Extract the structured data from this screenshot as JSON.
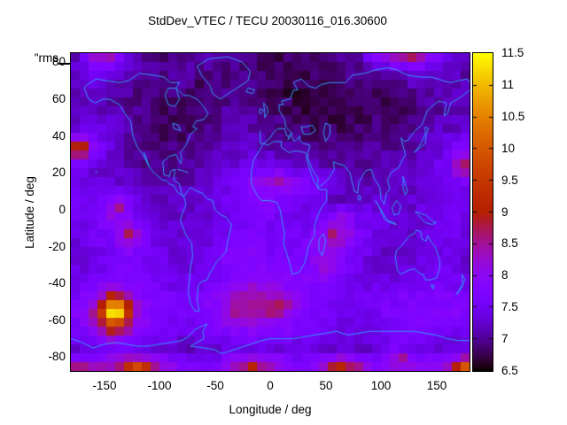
{
  "window_bg": "#ffffff",
  "text_color": "#000000",
  "chart_data": {
    "type": "heatmap",
    "title": "StdDev_VTEC / TECU 20030116_016.30600",
    "key_label": "\"rms",
    "xlabel": "Longitude / deg",
    "ylabel": "Latitude / deg",
    "units": "TECU",
    "xlim": [
      -180,
      180
    ],
    "ylim": [
      -87.5,
      85
    ],
    "xticks": [
      -150,
      -100,
      -50,
      0,
      50,
      100,
      150
    ],
    "yticks": [
      80,
      60,
      40,
      20,
      0,
      -20,
      -40,
      -60,
      -80
    ],
    "colorbar": {
      "range": [
        6.5,
        11.5
      ],
      "ticks": [
        6.5,
        7,
        7.5,
        8,
        8.5,
        9,
        9.5,
        10,
        10.5,
        11,
        11.5
      ],
      "palette": "pm3d black-violet-red-yellow (gnuplot rgbformulae 7,5,15)"
    },
    "grid_lons": [
      -176,
      -160,
      -144,
      -128,
      -112,
      -96,
      -80,
      -64,
      -48,
      -32,
      -16,
      0,
      16,
      32,
      48,
      64,
      80,
      96,
      112,
      128,
      144,
      160,
      176
    ],
    "grid_lats": [
      85,
      75,
      65,
      55,
      45,
      35,
      25,
      15,
      5,
      -5,
      -15,
      -25,
      -35,
      -45,
      -55,
      -65,
      -75,
      -85
    ],
    "base_values": [
      [
        7.2,
        8.3,
        8.5,
        7.4,
        7.0,
        6.9,
        6.9,
        7.0,
        7.1,
        7.0,
        6.9,
        6.8,
        6.8,
        6.9,
        6.9,
        7.0,
        7.1,
        8.2,
        8.8,
        8.9,
        8.2,
        7.4,
        7.2
      ],
      [
        7.3,
        7.5,
        7.4,
        7.1,
        7.0,
        7.0,
        7.1,
        7.0,
        7.0,
        6.9,
        6.9,
        6.8,
        6.8,
        6.8,
        6.9,
        6.9,
        7.0,
        7.0,
        7.2,
        7.4,
        7.3,
        7.2,
        7.1
      ],
      [
        7.2,
        7.3,
        7.2,
        7.0,
        6.9,
        6.9,
        6.9,
        6.8,
        6.9,
        7.0,
        6.9,
        6.8,
        6.7,
        6.7,
        6.7,
        6.8,
        6.8,
        6.8,
        6.9,
        7.0,
        7.1,
        7.2,
        7.1
      ],
      [
        7.1,
        7.2,
        7.1,
        7.0,
        6.9,
        6.8,
        6.8,
        6.8,
        6.9,
        7.1,
        7.0,
        6.9,
        6.8,
        6.7,
        6.7,
        6.7,
        6.8,
        6.8,
        6.8,
        6.9,
        7.0,
        7.1,
        7.1
      ],
      [
        7.3,
        7.4,
        7.3,
        7.1,
        6.9,
        6.8,
        6.8,
        6.9,
        7.0,
        7.2,
        7.1,
        7.0,
        6.9,
        6.8,
        6.8,
        6.8,
        6.8,
        6.9,
        6.9,
        7.0,
        7.1,
        7.2,
        7.3
      ],
      [
        8.0,
        7.8,
        7.3,
        7.1,
        7.0,
        6.9,
        6.9,
        7.0,
        7.1,
        7.2,
        7.2,
        7.1,
        7.0,
        7.0,
        6.9,
        6.9,
        6.9,
        7.0,
        7.0,
        7.1,
        7.2,
        7.4,
        7.8
      ],
      [
        7.6,
        7.4,
        7.2,
        7.1,
        7.0,
        7.0,
        7.0,
        7.1,
        7.2,
        7.3,
        7.4,
        7.4,
        7.3,
        7.2,
        7.1,
        7.0,
        7.0,
        7.1,
        7.1,
        7.2,
        7.3,
        7.6,
        8.2
      ],
      [
        7.4,
        7.3,
        7.3,
        7.2,
        7.1,
        7.1,
        7.1,
        7.2,
        7.4,
        7.6,
        7.9,
        8.1,
        8.0,
        7.8,
        7.5,
        7.2,
        7.1,
        7.1,
        7.2,
        7.2,
        7.3,
        7.4,
        7.5
      ],
      [
        7.6,
        7.5,
        7.9,
        7.6,
        7.3,
        7.2,
        7.2,
        7.3,
        7.4,
        7.6,
        7.8,
        7.8,
        7.6,
        7.4,
        7.3,
        7.2,
        7.2,
        7.3,
        7.3,
        7.3,
        7.4,
        7.5,
        7.6
      ],
      [
        7.5,
        7.5,
        8.0,
        7.8,
        7.4,
        7.3,
        7.2,
        7.3,
        7.4,
        7.5,
        7.6,
        7.6,
        7.5,
        7.5,
        7.6,
        8.2,
        7.6,
        7.4,
        7.3,
        7.3,
        7.4,
        7.5,
        7.5
      ],
      [
        7.4,
        7.5,
        7.7,
        8.4,
        7.6,
        7.4,
        7.3,
        7.3,
        7.4,
        7.6,
        7.7,
        7.6,
        7.5,
        7.6,
        8.0,
        8.3,
        7.7,
        7.4,
        7.3,
        7.3,
        7.4,
        7.4,
        7.4
      ],
      [
        7.3,
        7.4,
        7.5,
        7.7,
        7.5,
        7.4,
        7.3,
        7.4,
        7.6,
        8.0,
        7.9,
        7.7,
        7.6,
        7.7,
        8.2,
        7.9,
        7.5,
        7.3,
        7.2,
        7.3,
        7.4,
        7.4,
        7.3
      ],
      [
        7.4,
        7.5,
        7.6,
        7.7,
        7.6,
        7.5,
        7.4,
        7.4,
        7.6,
        7.8,
        7.8,
        7.7,
        7.7,
        7.8,
        7.9,
        7.6,
        7.4,
        7.3,
        7.3,
        7.4,
        7.5,
        7.5,
        7.4
      ],
      [
        7.6,
        7.8,
        8.2,
        8.0,
        7.7,
        7.6,
        7.5,
        7.6,
        7.8,
        8.2,
        8.4,
        8.2,
        8.0,
        7.8,
        7.6,
        7.5,
        7.5,
        7.5,
        7.6,
        7.7,
        7.7,
        7.7,
        7.6
      ],
      [
        7.8,
        8.4,
        8.8,
        8.5,
        7.9,
        7.7,
        7.6,
        7.7,
        8.0,
        8.6,
        8.6,
        8.4,
        8.0,
        7.8,
        7.6,
        7.5,
        7.5,
        7.6,
        7.7,
        7.8,
        7.8,
        7.8,
        7.8
      ],
      [
        7.6,
        8.0,
        8.8,
        8.3,
        7.8,
        7.6,
        7.5,
        7.5,
        7.7,
        7.9,
        8.0,
        7.9,
        7.8,
        7.6,
        7.5,
        7.4,
        7.4,
        7.5,
        7.6,
        7.7,
        7.7,
        7.7,
        7.6
      ],
      [
        7.3,
        7.4,
        7.6,
        7.6,
        7.4,
        7.3,
        7.2,
        7.2,
        7.3,
        7.4,
        7.4,
        7.4,
        7.3,
        7.3,
        7.2,
        7.2,
        7.2,
        7.3,
        7.6,
        7.4,
        7.3,
        7.3,
        7.3
      ],
      [
        8.4,
        8.2,
        8.4,
        9.0,
        8.8,
        8.2,
        7.8,
        7.6,
        7.8,
        8.4,
        8.8,
        8.3,
        7.9,
        7.8,
        8.2,
        8.9,
        8.4,
        7.9,
        8.0,
        8.2,
        7.9,
        8.3,
        9.2
      ]
    ],
    "hotspots": [
      [
        -140,
        -55,
        2.9,
        11,
        7
      ],
      [
        -172,
        33,
        1.5,
        8,
        6
      ],
      [
        -136,
        2,
        0.9,
        6,
        4
      ],
      [
        -124,
        -14,
        0.5,
        6,
        4
      ],
      [
        8,
        -52,
        0.5,
        14,
        5
      ],
      [
        55,
        -12,
        0.7,
        5,
        4
      ],
      [
        52,
        -32,
        0.6,
        5,
        4
      ],
      [
        10,
        17,
        0.7,
        6,
        3
      ],
      [
        128,
        87,
        0.4,
        16,
        4
      ],
      [
        172,
        22,
        0.8,
        6,
        5
      ],
      [
        118,
        -80,
        0.7,
        5,
        3
      ],
      [
        -120,
        -87,
        1.2,
        9,
        4
      ],
      [
        -15,
        -87,
        0.5,
        5,
        3
      ],
      [
        60,
        -86,
        0.6,
        5,
        3
      ],
      [
        176,
        -86,
        0.7,
        7,
        4
      ],
      [
        -165,
        -87,
        0.5,
        7,
        3
      ]
    ],
    "noise_amplitude": 0.15,
    "render_cells": {
      "cols": 45,
      "rows": 36
    }
  },
  "map": {
    "coastline_color": "#3399ff",
    "coastlines": [
      [
        -168,
        66,
        -164,
        60,
        -158,
        58,
        -151,
        60,
        -145,
        60,
        -136,
        57,
        -131,
        52,
        -126,
        48,
        -124,
        40,
        -120,
        34,
        -115,
        30,
        -109,
        23,
        -105,
        20,
        -97,
        16,
        -94,
        16,
        -91,
        14,
        -87,
        13,
        -83,
        9,
        -80,
        8,
        -78,
        7,
        -80,
        9,
        -82,
        14,
        -87,
        16,
        -86,
        22,
        -90,
        21,
        -91,
        18,
        -96,
        19,
        -97,
        26,
        -91,
        29,
        -85,
        30,
        -81,
        25,
        -80,
        27,
        -81,
        31,
        -76,
        35,
        -72,
        41,
        -66,
        44,
        -70,
        45,
        -67,
        48,
        -60,
        49,
        -56,
        52,
        -60,
        56,
        -66,
        60,
        -73,
        62,
        -78,
        62,
        -85,
        66,
        -82,
        69,
        -90,
        69,
        -96,
        72,
        -105,
        73,
        -118,
        74,
        -128,
        70,
        -136,
        69,
        -148,
        70,
        -157,
        71,
        -165,
        68,
        -168,
        66
      ],
      [
        -85,
        66,
        -82,
        60,
        -86,
        56,
        -92,
        57,
        -95,
        62,
        -92,
        66,
        -85,
        66
      ],
      [
        -88,
        47,
        -83,
        46,
        -81,
        43,
        -87,
        44,
        -88,
        47
      ],
      [
        -114,
        31,
        -111,
        26,
        -109,
        23,
        -112,
        28,
        -114,
        31
      ],
      [
        -45,
        60,
        -38,
        63,
        -20,
        70,
        -18,
        75,
        -25,
        80,
        -38,
        83,
        -55,
        82,
        -66,
        78,
        -62,
        73,
        -54,
        67,
        -52,
        63,
        -45,
        60
      ],
      [
        -22,
        64,
        -16,
        63,
        -14,
        65,
        -20,
        66,
        -22,
        64
      ],
      [
        -84,
        22,
        -78,
        21,
        -74,
        20
      ],
      [
        -158,
        21,
        -156,
        20
      ],
      [
        -78,
        7,
        -76,
        3,
        -80,
        -3,
        -81,
        -6,
        -76,
        -14,
        -71,
        -18,
        -70,
        -25,
        -72,
        -31,
        -73,
        -38,
        -74,
        -45,
        -72,
        -51,
        -68,
        -55,
        -64,
        -55,
        -66,
        -49,
        -65,
        -41,
        -62,
        -39,
        -57,
        -38,
        -55,
        -35,
        -48,
        -28,
        -40,
        -23,
        -38,
        -16,
        -35,
        -8,
        -40,
        -4,
        -44,
        -3,
        -50,
        0,
        -52,
        5,
        -57,
        6,
        -61,
        9,
        -66,
        10,
        -72,
        12,
        -76,
        9,
        -78,
        7
      ],
      [
        -6,
        36,
        -10,
        32,
        -15,
        27,
        -17,
        21,
        -17,
        14,
        -12,
        8,
        -8,
        5,
        -1,
        5,
        6,
        4,
        9,
        0,
        11,
        -7,
        13,
        -13,
        12,
        -18,
        15,
        -24,
        18,
        -30,
        20,
        -35,
        26,
        -34,
        31,
        -29,
        33,
        -24,
        35,
        -19,
        40,
        -14,
        40,
        -9,
        43,
        -3,
        46,
        1,
        51,
        5,
        51,
        11,
        44,
        11,
        39,
        16,
        34,
        25,
        32,
        31,
        23,
        32,
        17,
        31,
        10,
        34,
        10,
        37,
        3,
        37,
        -2,
        35,
        -6,
        36
      ],
      [
        44,
        -16,
        48,
        -13,
        50,
        -17,
        47,
        -25,
        44,
        -22,
        44,
        -16
      ],
      [
        -9,
        43,
        -9,
        36,
        -6,
        36,
        0,
        39,
        3,
        42,
        7,
        44,
        13,
        44,
        15,
        40,
        18,
        40,
        16,
        38,
        19,
        42,
        14,
        45,
        13,
        49,
        8,
        54,
        8,
        57,
        12,
        57,
        10,
        59,
        18,
        60,
        21,
        65,
        25,
        65,
        21,
        69,
        28,
        71,
        35,
        67,
        41,
        66,
        46,
        68,
        54,
        69,
        62,
        69,
        68,
        69,
        74,
        73,
        85,
        74,
        96,
        76,
        106,
        77,
        114,
        76,
        124,
        73,
        136,
        72,
        146,
        72,
        156,
        70,
        163,
        69,
        170,
        70,
        178,
        71,
        180,
        69
      ],
      [
        180,
        65,
        172,
        61,
        163,
        58,
        160,
        52,
        157,
        51,
        159,
        58,
        152,
        59,
        142,
        54,
        137,
        46,
        131,
        43,
        127,
        40,
        125,
        38,
        121,
        37,
        118,
        39,
        122,
        30,
        116,
        23,
        109,
        20,
        106,
        16,
        108,
        11,
        105,
        9,
        103,
        3,
        100,
        6,
        99,
        12,
        94,
        17,
        91,
        22,
        86,
        21,
        80,
        15,
        79,
        9,
        76,
        10,
        72,
        20,
        67,
        24,
        61,
        25,
        57,
        26
      ],
      [
        57,
        26,
        58,
        22,
        53,
        17,
        48,
        14,
        43,
        12,
        43,
        17,
        38,
        22,
        34,
        28,
        34,
        31,
        36,
        35,
        30,
        36,
        26,
        38,
        27,
        40,
        22,
        37,
        20,
        39,
        19,
        42
      ],
      [
        28,
        45,
        33,
        45,
        38,
        46,
        41,
        43,
        36,
        41,
        30,
        41,
        28,
        45
      ],
      [
        50,
        47,
        54,
        46,
        54,
        41,
        50,
        37,
        48,
        42,
        50,
        47
      ],
      [
        -5,
        50,
        -2,
        53,
        -3,
        56,
        -6,
        58,
        -5,
        53,
        -5,
        50
      ],
      [
        -9,
        52,
        -6,
        54,
        -9,
        55,
        -10,
        53,
        -9,
        52
      ],
      [
        140,
        45,
        143,
        44,
        141,
        41,
        140,
        36,
        136,
        34,
        132,
        32,
        130,
        31,
        134,
        34,
        137,
        37,
        140,
        41,
        140,
        45
      ],
      [
        80,
        8,
        82,
        7,
        81,
        5,
        79,
        6,
        80,
        8
      ],
      [
        110,
        1,
        114,
        5,
        118,
        2,
        116,
        -2,
        112,
        -3,
        110,
        1
      ],
      [
        95,
        5,
        100,
        0,
        104,
        -4,
        106,
        -6,
        112,
        -7,
        114,
        -8,
        108,
        -7,
        103,
        -5,
        98,
        2,
        95,
        5
      ],
      [
        131,
        -1,
        136,
        -2,
        141,
        -3,
        146,
        -6,
        150,
        -7,
        146,
        -8,
        140,
        -7,
        134,
        -3,
        131,
        -1
      ],
      [
        120,
        18,
        122,
        14,
        124,
        10,
        122,
        8,
        120,
        12,
        120,
        18
      ],
      [
        114,
        -22,
        113,
        -26,
        115,
        -33,
        118,
        -35,
        124,
        -33,
        130,
        -32,
        136,
        -35,
        138,
        -35,
        140,
        -38,
        145,
        -38,
        150,
        -37,
        153,
        -32,
        153,
        -27,
        151,
        -24,
        149,
        -20,
        146,
        -18,
        142,
        -14,
        141,
        -17,
        137,
        -16,
        136,
        -12,
        132,
        -11,
        130,
        -13,
        126,
        -14,
        122,
        -17,
        118,
        -20,
        114,
        -22
      ],
      [
        145,
        -41,
        148,
        -41,
        147,
        -43,
        145,
        -41
      ],
      [
        173,
        -35,
        176,
        -38,
        174,
        -40,
        170,
        -44,
        168,
        -46,
        171,
        -44,
        174,
        -41,
        173,
        -35
      ],
      [
        -180,
        -70,
        -170,
        -72,
        -160,
        -75,
        -150,
        -73,
        -140,
        -72,
        -130,
        -73,
        -120,
        -74,
        -110,
        -74,
        -100,
        -73,
        -90,
        -72,
        -80,
        -71,
        -74,
        -69,
        -68,
        -65,
        -61,
        -63,
        -57,
        -62,
        -61,
        -66,
        -60,
        -70,
        -66,
        -72,
        -72,
        -74,
        -60,
        -75,
        -50,
        -76,
        -44,
        -78,
        -38,
        -77,
        -28,
        -75,
        -18,
        -73,
        -8,
        -71,
        0,
        -70,
        10,
        -70,
        20,
        -70,
        30,
        -69,
        40,
        -68,
        50,
        -67,
        60,
        -66,
        70,
        -68,
        80,
        -67,
        90,
        -66,
        100,
        -66,
        110,
        -66,
        120,
        -66,
        130,
        -66,
        140,
        -67,
        150,
        -68,
        160,
        -70,
        170,
        -71,
        180,
        -71
      ]
    ]
  }
}
